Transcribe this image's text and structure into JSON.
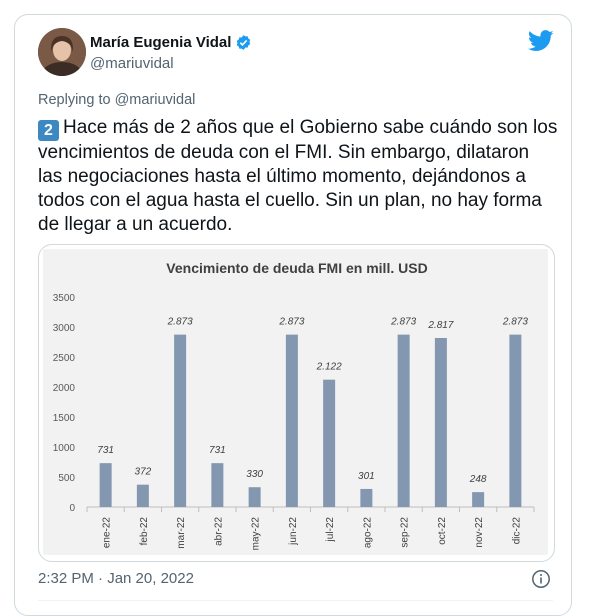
{
  "author": {
    "name": "María Eugenia Vidal",
    "handle": "@mariuvidal"
  },
  "reply": {
    "prefix": "Replying to ",
    "target": "@mariuvidal"
  },
  "tweet": {
    "badge": "2",
    "text": "Hace más de 2 años que el Gobierno sabe cuándo son los vencimientos de deuda con el FMI. Sin embargo, dilataron las negociaciones hasta el último momento, dejándonos a todos con el agua hasta el cuello. Sin un plan, no hay forma de llegar a un acuerdo."
  },
  "meta": {
    "timestamp": "2:32 PM · Jan 20, 2022"
  },
  "colors": {
    "bar": "#8497b0",
    "twitter_blue": "#1d9bf0"
  },
  "chart_data": {
    "type": "bar",
    "title": "Vencimiento de deuda FMI en  mill. USD",
    "categories": [
      "ene-22",
      "feb-22",
      "mar-22",
      "abr-22",
      "may-22",
      "jun-22",
      "jul-22",
      "ago-22",
      "sep-22",
      "oct-22",
      "nov-22",
      "dic-22"
    ],
    "values": [
      731,
      372,
      2873,
      731,
      330,
      2873,
      2122,
      301,
      2873,
      2817,
      248,
      2873
    ],
    "data_labels": [
      "731",
      "372",
      "2.873",
      "731",
      "330",
      "2.873",
      "2.122",
      "301",
      "2.873",
      "2.817",
      "248",
      "2.873"
    ],
    "yticks": [
      "0",
      "500",
      "1000",
      "1500",
      "2000",
      "2500",
      "3000",
      "3500"
    ],
    "ylim": [
      0,
      3500
    ],
    "grid": false,
    "legend": "none"
  }
}
